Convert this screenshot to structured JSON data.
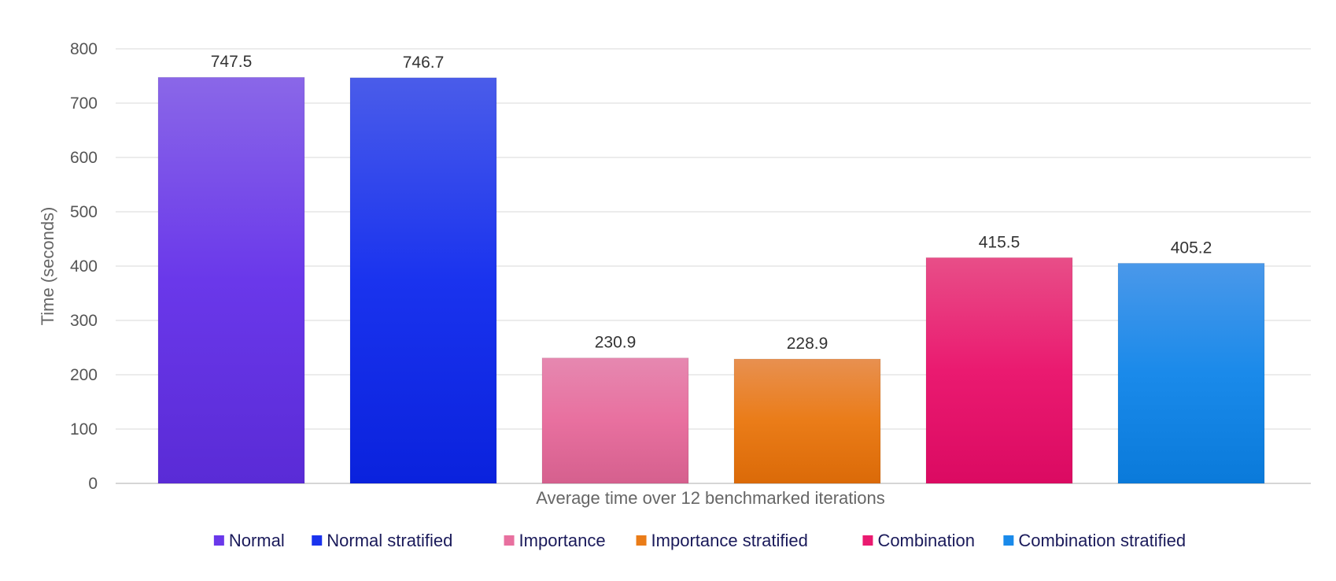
{
  "chart_data": {
    "type": "bar",
    "xlabel": "Average time over 12 benchmarked iterations",
    "ylabel": "Time (seconds)",
    "ylim": [
      0,
      800
    ],
    "yticks": [
      0,
      100,
      200,
      300,
      400,
      500,
      600,
      700,
      800
    ],
    "grid": true,
    "legend_position": "bottom",
    "series": [
      {
        "name": "Normal",
        "value": 747.5,
        "label": "747.5",
        "color_top": "#8a67e8",
        "color_mid": "#6a38ea",
        "color_bottom": "#5a2bd6",
        "legend_color": "#6a38ea"
      },
      {
        "name": "Normal stratified",
        "value": 746.7,
        "label": "746.7",
        "color_top": "#4a5cea",
        "color_mid": "#1a33ee",
        "color_bottom": "#0a22dd",
        "legend_color": "#1a33ee"
      },
      {
        "name": "Importance",
        "value": 230.9,
        "label": "230.9",
        "color_top": "#e688b0",
        "color_mid": "#e8709f",
        "color_bottom": "#d5608e",
        "legend_color": "#e8709f"
      },
      {
        "name": "Importance stratified",
        "value": 228.9,
        "label": "228.9",
        "color_top": "#e89050",
        "color_mid": "#ea7c18",
        "color_bottom": "#db6a08",
        "legend_color": "#ea7c18"
      },
      {
        "name": "Combination",
        "value": 415.5,
        "label": "415.5",
        "color_top": "#e84e88",
        "color_mid": "#ea1a70",
        "color_bottom": "#db0a62",
        "legend_color": "#ea1a70"
      },
      {
        "name": "Combination stratified",
        "value": 405.2,
        "label": "405.2",
        "color_top": "#4a98ea",
        "color_mid": "#1a8aea",
        "color_bottom": "#0a7ada",
        "legend_color": "#1a8aea"
      }
    ]
  }
}
